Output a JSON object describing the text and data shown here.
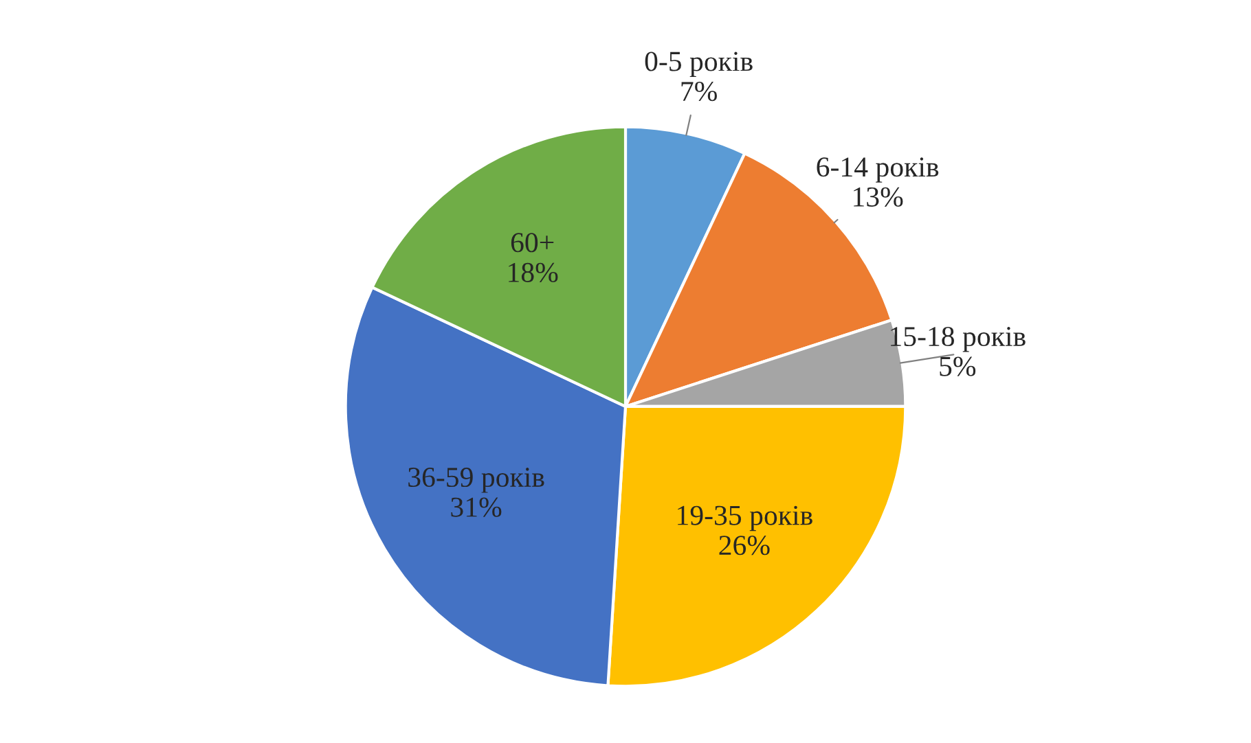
{
  "chart_data": {
    "type": "pie",
    "categories": [
      "0-5 років",
      "6-14 років",
      "15-18 років",
      "19-35 років",
      "36-59 років",
      "60+"
    ],
    "values": [
      7,
      13,
      5,
      26,
      31,
      18
    ],
    "value_labels": [
      "7%",
      "13%",
      "5%",
      "26%",
      "31%",
      "18%"
    ],
    "colors": [
      "#5b9bd5",
      "#ed7d31",
      "#a5a5a5",
      "#ffc000",
      "#4472c4",
      "#70ad47"
    ],
    "legend": false
  }
}
